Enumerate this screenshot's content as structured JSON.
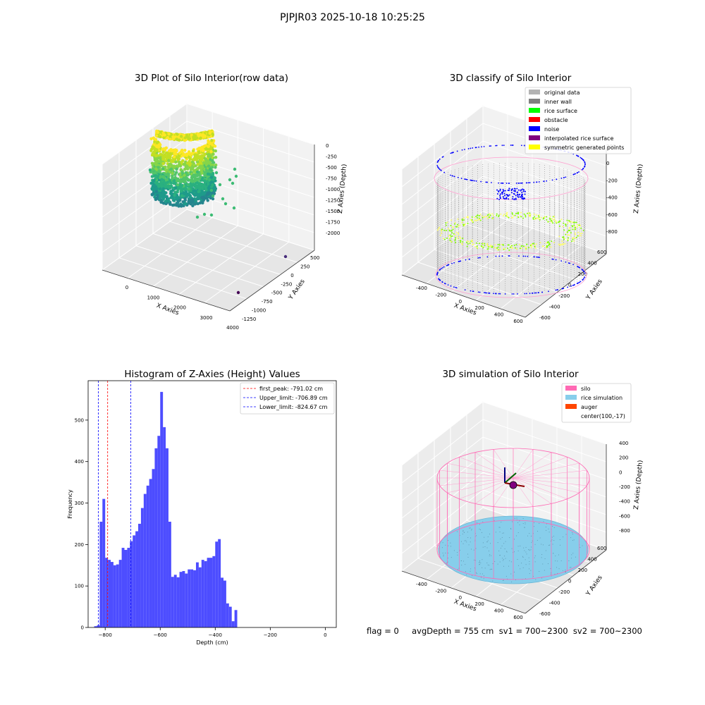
{
  "figure": {
    "suptitle": "PJPJR03 2025-10-18 10:25:25",
    "status_line": "flag = 0     avgDepth = 755 cm  sv1 = 700~2300  sv2 = 700~2300"
  },
  "chart_data": [
    {
      "type": "scatter",
      "projection": "3d",
      "title": "3D Plot of Silo Interior(row data)",
      "xlabel": "X Axies",
      "ylabel": "Y Axies",
      "zlabel": "Z Axies (Depth)",
      "x_ticks": [
        "0",
        "1000",
        "2000",
        "3000",
        "4000"
      ],
      "y_ticks": [
        "500",
        "250",
        "0",
        "-250",
        "-500",
        "-750",
        "-1000",
        "-1250"
      ],
      "z_ticks": [
        "0",
        "-250",
        "-500",
        "-750",
        "-1000",
        "-1250",
        "-1500",
        "-1750",
        "-2000"
      ],
      "colormap": "viridis",
      "grid": true
    },
    {
      "type": "scatter",
      "projection": "3d",
      "title": "3D classify of Silo Interior",
      "xlabel": "X Axies",
      "ylabel": "Y Axies",
      "zlabel": "Z Axies (Depth)",
      "x_ticks": [
        "-400",
        "-200",
        "0",
        "200",
        "400",
        "600"
      ],
      "y_ticks": [
        "600",
        "400",
        "200",
        "0",
        "-200",
        "-400",
        "-600"
      ],
      "z_ticks": [
        "200",
        "0",
        "-200",
        "-400",
        "-600",
        "-800"
      ],
      "legend": [
        {
          "label": "original data",
          "color": "#b3b3b3"
        },
        {
          "label": "inner wall",
          "color": "#808080"
        },
        {
          "label": "rice surface",
          "color": "#00ff00"
        },
        {
          "label": "obstacle",
          "color": "#ff0000"
        },
        {
          "label": "noise",
          "color": "#0000ff"
        },
        {
          "label": "interpolated rice surface",
          "color": "#800080"
        },
        {
          "label": "symmetric generated points",
          "color": "#ffff00"
        }
      ],
      "legend_loc": "upper right",
      "grid": true
    },
    {
      "type": "bar",
      "title": "Histogram of Z-Axies (Height) Values",
      "xlabel": "Depth (cm)",
      "ylabel": "Frequency",
      "bin_start": -840,
      "bin_width": 10,
      "values": [
        3,
        5,
        255,
        310,
        168,
        163,
        158,
        150,
        152,
        163,
        192,
        187,
        192,
        208,
        222,
        232,
        250,
        288,
        322,
        342,
        358,
        382,
        432,
        462,
        568,
        483,
        432,
        255,
        122,
        127,
        121,
        134,
        136,
        130,
        140,
        140,
        138,
        157,
        145,
        163,
        160,
        168,
        168,
        172,
        207,
        213,
        120,
        113,
        58,
        50,
        15,
        42
      ],
      "xlim": [
        -862,
        40
      ],
      "ylim": [
        0,
        595
      ],
      "x_ticks": [
        -800,
        -600,
        -400,
        -200,
        0
      ],
      "y_ticks": [
        0,
        100,
        200,
        300,
        400,
        500
      ],
      "bar_color": "#4d4dff",
      "vlines": [
        {
          "x": -791.02,
          "label": "first_peak: -791.02 cm",
          "color": "#ff0000"
        },
        {
          "x": -706.89,
          "label": "Upper_limit: -706.89 cm",
          "color": "#0000ff"
        },
        {
          "x": -824.67,
          "label": "Lower_limit: -824.67 cm",
          "color": "#0000ff"
        }
      ],
      "legend_loc": "upper right"
    },
    {
      "type": "surface",
      "projection": "3d",
      "title": "3D simulation of Silo Interior",
      "xlabel": "X Axies",
      "ylabel": "Y Axies",
      "zlabel": "Z Axies (Depth)",
      "x_ticks": [
        "-400",
        "-200",
        "0",
        "200",
        "400",
        "600"
      ],
      "y_ticks": [
        "600",
        "400",
        "200",
        "0",
        "-200",
        "-400",
        "-600"
      ],
      "z_ticks": [
        "400",
        "200",
        "0",
        "-200",
        "-400",
        "-600",
        "-800"
      ],
      "legend": [
        {
          "label": "silo",
          "color": "#ff69b4"
        },
        {
          "label": "rice simulation",
          "color": "#87ceeb"
        },
        {
          "label": "auger",
          "color": "#ff4500"
        },
        {
          "label": "center(100,-17)",
          "color": ""
        }
      ],
      "legend_loc": "upper right",
      "grid": true
    }
  ]
}
